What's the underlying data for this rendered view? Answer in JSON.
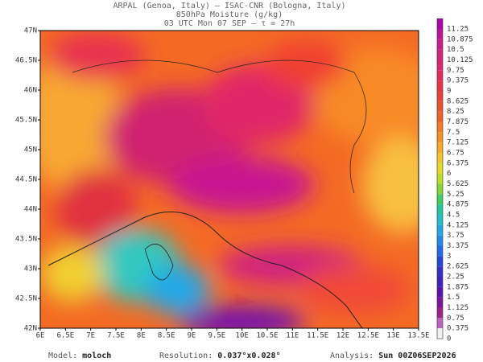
{
  "header": {
    "line1": "ARPAL (Genoa, Italy)  –  ISAC-CNR (Bologna, Italy)",
    "line2": "850hPa Moisture (g/kg)",
    "line3": "03 UTC Mon 07 SEP  –  τ = 27h"
  },
  "lat_labels": [
    "47N",
    "46.5N",
    "46N",
    "45.5N",
    "45N",
    "44.5N",
    "44N",
    "43.5N",
    "43N",
    "42.5N",
    "42N"
  ],
  "lon_labels": [
    "6E",
    "6.5E",
    "7E",
    "7.5E",
    "8E",
    "8.5E",
    "9E",
    "9.5E",
    "10E",
    "10.5E",
    "11E",
    "11.5E",
    "12E",
    "12.5E",
    "13E",
    "13.5E"
  ],
  "colorbar": [
    {
      "label": "11.25",
      "color": "#b000b0"
    },
    {
      "label": "10.875",
      "color": "#c010a0"
    },
    {
      "label": "10.5",
      "color": "#d01890"
    },
    {
      "label": "10.125",
      "color": "#d82080"
    },
    {
      "label": "9.75",
      "color": "#e02070"
    },
    {
      "label": "9.375",
      "color": "#e82858"
    },
    {
      "label": "9",
      "color": "#f03040"
    },
    {
      "label": "8.625",
      "color": "#f04030"
    },
    {
      "label": "8.25",
      "color": "#f05028"
    },
    {
      "label": "7.875",
      "color": "#f46020"
    },
    {
      "label": "7.5",
      "color": "#f87820"
    },
    {
      "label": "7.125",
      "color": "#f89020"
    },
    {
      "label": "6.75",
      "color": "#f8a820"
    },
    {
      "label": "6.375",
      "color": "#f8c020"
    },
    {
      "label": "6",
      "color": "#e8d820"
    },
    {
      "label": "5.625",
      "color": "#b8e020"
    },
    {
      "label": "5.25",
      "color": "#80d830"
    },
    {
      "label": "4.875",
      "color": "#40d060"
    },
    {
      "label": "4.5",
      "color": "#20c8a0"
    },
    {
      "label": "4.125",
      "color": "#20c0d0"
    },
    {
      "label": "3.75",
      "color": "#20a8e8"
    },
    {
      "label": "3.375",
      "color": "#2088f0"
    },
    {
      "label": "3",
      "color": "#2068f0"
    },
    {
      "label": "2.625",
      "color": "#2048e0"
    },
    {
      "label": "2.25",
      "color": "#3030d0"
    },
    {
      "label": "1.875",
      "color": "#4020c0"
    },
    {
      "label": "1.5",
      "color": "#6010b0"
    },
    {
      "label": "1.125",
      "color": "#8010a0"
    },
    {
      "label": "0.75",
      "color": "#a02090"
    },
    {
      "label": "0.375",
      "color": "#c060c0"
    },
    {
      "label": "0",
      "color": "#f0f0f0"
    }
  ],
  "footer": [
    {
      "label": "Model:",
      "value": "moloch"
    },
    {
      "label": "Resolution:",
      "value": "0.037°x0.028°"
    },
    {
      "label": "Analysis:",
      "value": "Sun 00Z06SEP2026"
    }
  ]
}
